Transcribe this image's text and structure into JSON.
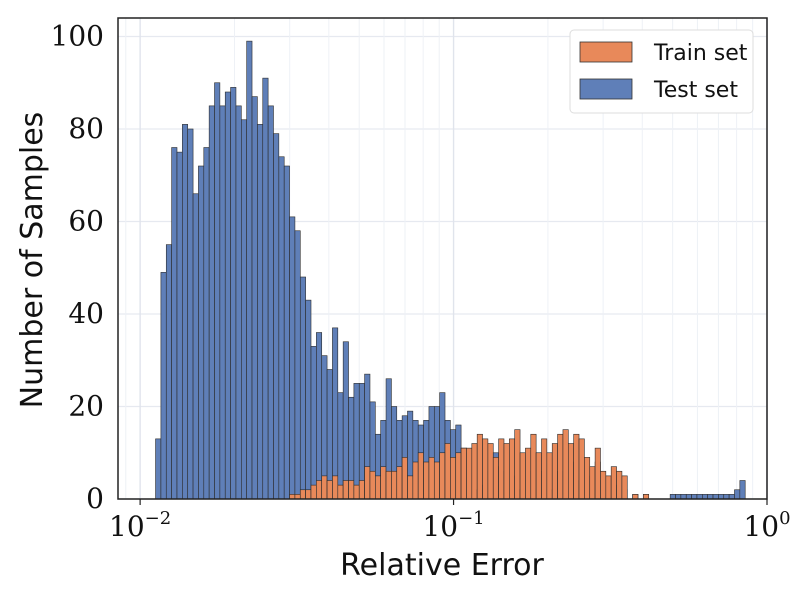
{
  "chart_data": {
    "type": "bar",
    "subtype": "histogram",
    "xlabel": "Relative Error",
    "ylabel": "Number of Samples",
    "xscale": "log",
    "xlim": [
      0.0085,
      1.0
    ],
    "ylim": [
      0,
      104
    ],
    "grid": true,
    "legend_position": "top-right",
    "x_ticks": [
      {
        "base": "10",
        "exp": "−2",
        "value": 0.01
      },
      {
        "base": "10",
        "exp": "−1",
        "value": 0.1
      },
      {
        "base": "10",
        "exp": "0",
        "value": 1
      }
    ],
    "y_ticks": [
      {
        "label": "0",
        "value": 0
      },
      {
        "label": "20",
        "value": 20
      },
      {
        "label": "40",
        "value": 40
      },
      {
        "label": "60",
        "value": 60
      },
      {
        "label": "80",
        "value": 80
      },
      {
        "label": "100",
        "value": 100
      }
    ],
    "bins": {
      "start": 0.0112,
      "stop": 0.852,
      "count": 110
    },
    "series": [
      {
        "name": "Train set",
        "color": "#e8895a",
        "stack": "top",
        "counts": [
          0,
          0,
          0,
          0,
          0,
          0,
          0,
          0,
          0,
          0,
          0,
          0,
          0,
          0,
          0,
          0,
          0,
          0,
          0,
          0,
          0,
          0,
          0,
          0,
          0,
          1,
          1,
          2,
          2,
          3,
          4,
          5,
          4,
          5,
          3,
          4,
          4,
          3,
          4,
          7,
          6,
          5,
          7,
          6,
          6,
          7,
          9,
          5,
          8,
          10,
          8,
          9,
          8,
          10,
          12,
          9,
          10,
          11,
          11,
          12,
          14,
          13,
          12,
          9,
          13,
          12,
          13,
          15,
          10,
          11,
          14,
          10,
          13,
          10,
          12,
          14,
          15,
          12,
          14,
          13,
          9,
          7,
          11,
          6,
          5,
          7,
          6,
          5,
          0,
          1,
          0,
          1,
          0,
          0,
          0,
          0,
          0,
          0,
          0,
          0,
          0,
          0,
          0,
          0,
          0,
          0,
          0,
          0,
          0,
          0
        ]
      },
      {
        "name": "Test set",
        "color": "#5f7fb8",
        "stack": "bottom",
        "counts": [
          13,
          49,
          55,
          76,
          75,
          81,
          80,
          66,
          72,
          76,
          85,
          90,
          85,
          88,
          89,
          85,
          82,
          99,
          87,
          81,
          91,
          85,
          79,
          74,
          72,
          61,
          58,
          48,
          43,
          33,
          36,
          31,
          28,
          37,
          23,
          34,
          22,
          25,
          25,
          27,
          21,
          14,
          17,
          26,
          20,
          17,
          18,
          19,
          17,
          16,
          17,
          20,
          20,
          23,
          17,
          15,
          16,
          11,
          10,
          6,
          2,
          3,
          6,
          10,
          7,
          6,
          5,
          5,
          2,
          4,
          6,
          10,
          6,
          4,
          2,
          6,
          6,
          5,
          8,
          4,
          2,
          5,
          8,
          4,
          4,
          5,
          3,
          2,
          0,
          1,
          0,
          1,
          0,
          0,
          0,
          0,
          1,
          1,
          1,
          1,
          1,
          1,
          1,
          1,
          1,
          1,
          1,
          1,
          2,
          4
        ]
      }
    ]
  }
}
